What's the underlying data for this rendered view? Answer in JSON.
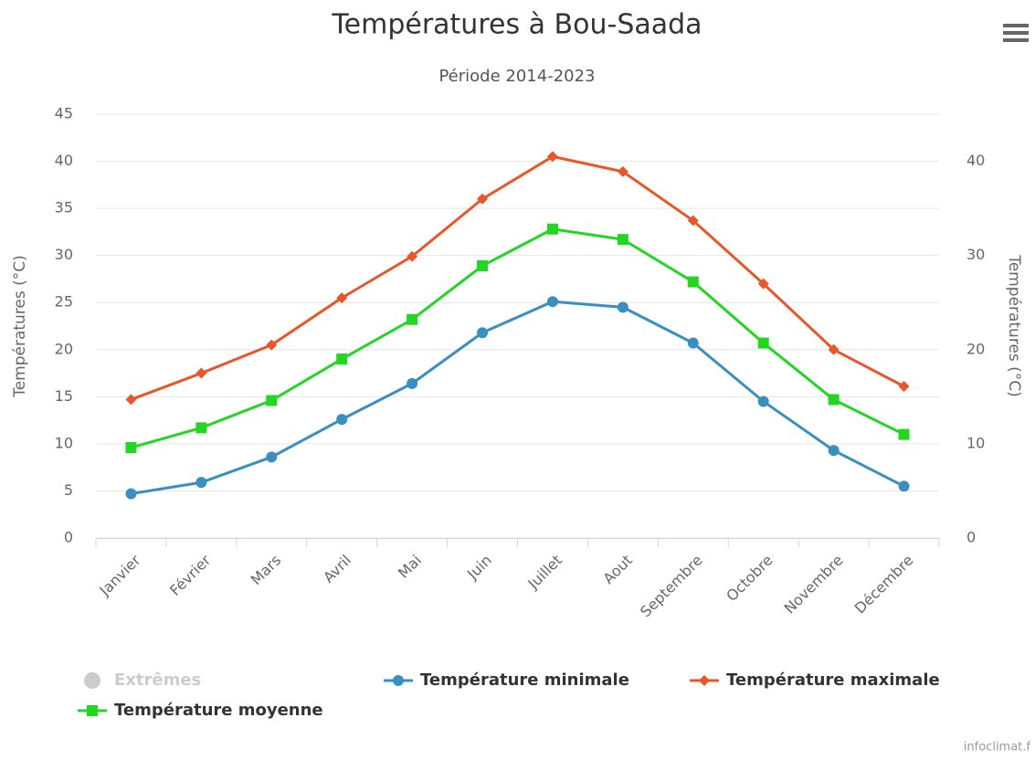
{
  "chart_data": {
    "type": "line",
    "title": "Températures à Bou-Saada",
    "subtitle": "Période 2014-2023",
    "y_label": "Températures (°C)",
    "y2_label": "Températures (°C)",
    "categories": [
      "Janvier",
      "Février",
      "Mars",
      "Avril",
      "Mai",
      "Juin",
      "Juillet",
      "Aout",
      "Septembre",
      "Octobre",
      "Novembre",
      "Décembre"
    ],
    "ylim": [
      0,
      45
    ],
    "yticks": [
      0,
      5,
      10,
      15,
      20,
      25,
      30,
      35,
      40,
      45
    ],
    "y2lim": [
      0,
      45
    ],
    "y2ticks": [
      0,
      10,
      20,
      30,
      40
    ],
    "grid": true,
    "hidden_series": {
      "name": "Extrêmes",
      "color": "#cccccc"
    },
    "series": [
      {
        "name": "Température minimale",
        "color": "#3a8fc1",
        "marker": "circle",
        "values": [
          4.7,
          5.9,
          8.6,
          12.6,
          16.4,
          21.8,
          25.1,
          24.5,
          20.7,
          14.5,
          9.3,
          5.5
        ]
      },
      {
        "name": "Température maximale",
        "color": "#e8572a",
        "marker": "diamond",
        "values": [
          14.7,
          17.5,
          20.5,
          25.5,
          29.9,
          36.0,
          40.5,
          38.9,
          33.7,
          27.0,
          20.0,
          16.1
        ]
      },
      {
        "name": "Température moyenne",
        "color": "#22d622",
        "marker": "square",
        "values": [
          9.6,
          11.7,
          14.6,
          19.0,
          23.2,
          28.9,
          32.8,
          31.7,
          27.2,
          20.7,
          14.7,
          11.0
        ]
      }
    ],
    "credits": "infoclimat.f"
  }
}
